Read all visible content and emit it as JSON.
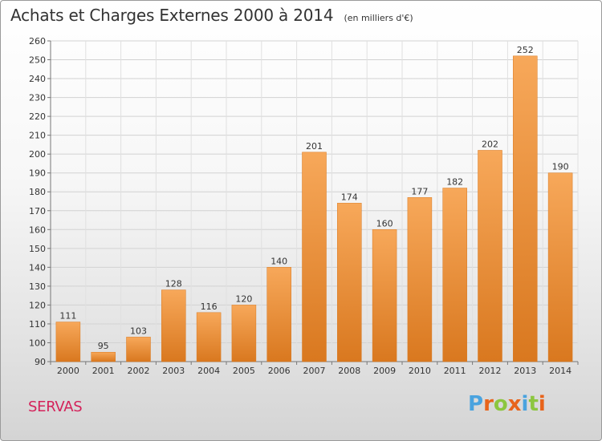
{
  "header": {
    "title": "Achats et Charges Externes 2000 à 2014",
    "subtitle": "(en milliers d'€)"
  },
  "footer": {
    "commune": "SERVAS",
    "brand": "Proxiti"
  },
  "colors": {
    "bar_light": "#f7a85a",
    "bar_dark": "#d9781f",
    "commune": "#d4225a",
    "brand_letters": [
      "#4aa3df",
      "#e8641b",
      "#8cc63f",
      "#e8641b",
      "#4aa3df",
      "#8cc63f",
      "#e8641b"
    ]
  },
  "chart_data": {
    "type": "bar",
    "categories": [
      "2000",
      "2001",
      "2002",
      "2003",
      "2004",
      "2005",
      "2006",
      "2007",
      "2008",
      "2009",
      "2010",
      "2011",
      "2012",
      "2013",
      "2014"
    ],
    "values": [
      111,
      95,
      103,
      128,
      116,
      120,
      140,
      201,
      174,
      160,
      177,
      182,
      202,
      252,
      190
    ],
    "ylim": [
      90,
      260
    ],
    "yticks": [
      90,
      100,
      110,
      120,
      130,
      140,
      150,
      160,
      170,
      180,
      190,
      200,
      210,
      220,
      230,
      240,
      250,
      260
    ],
    "grid": true,
    "data_labels": true
  }
}
